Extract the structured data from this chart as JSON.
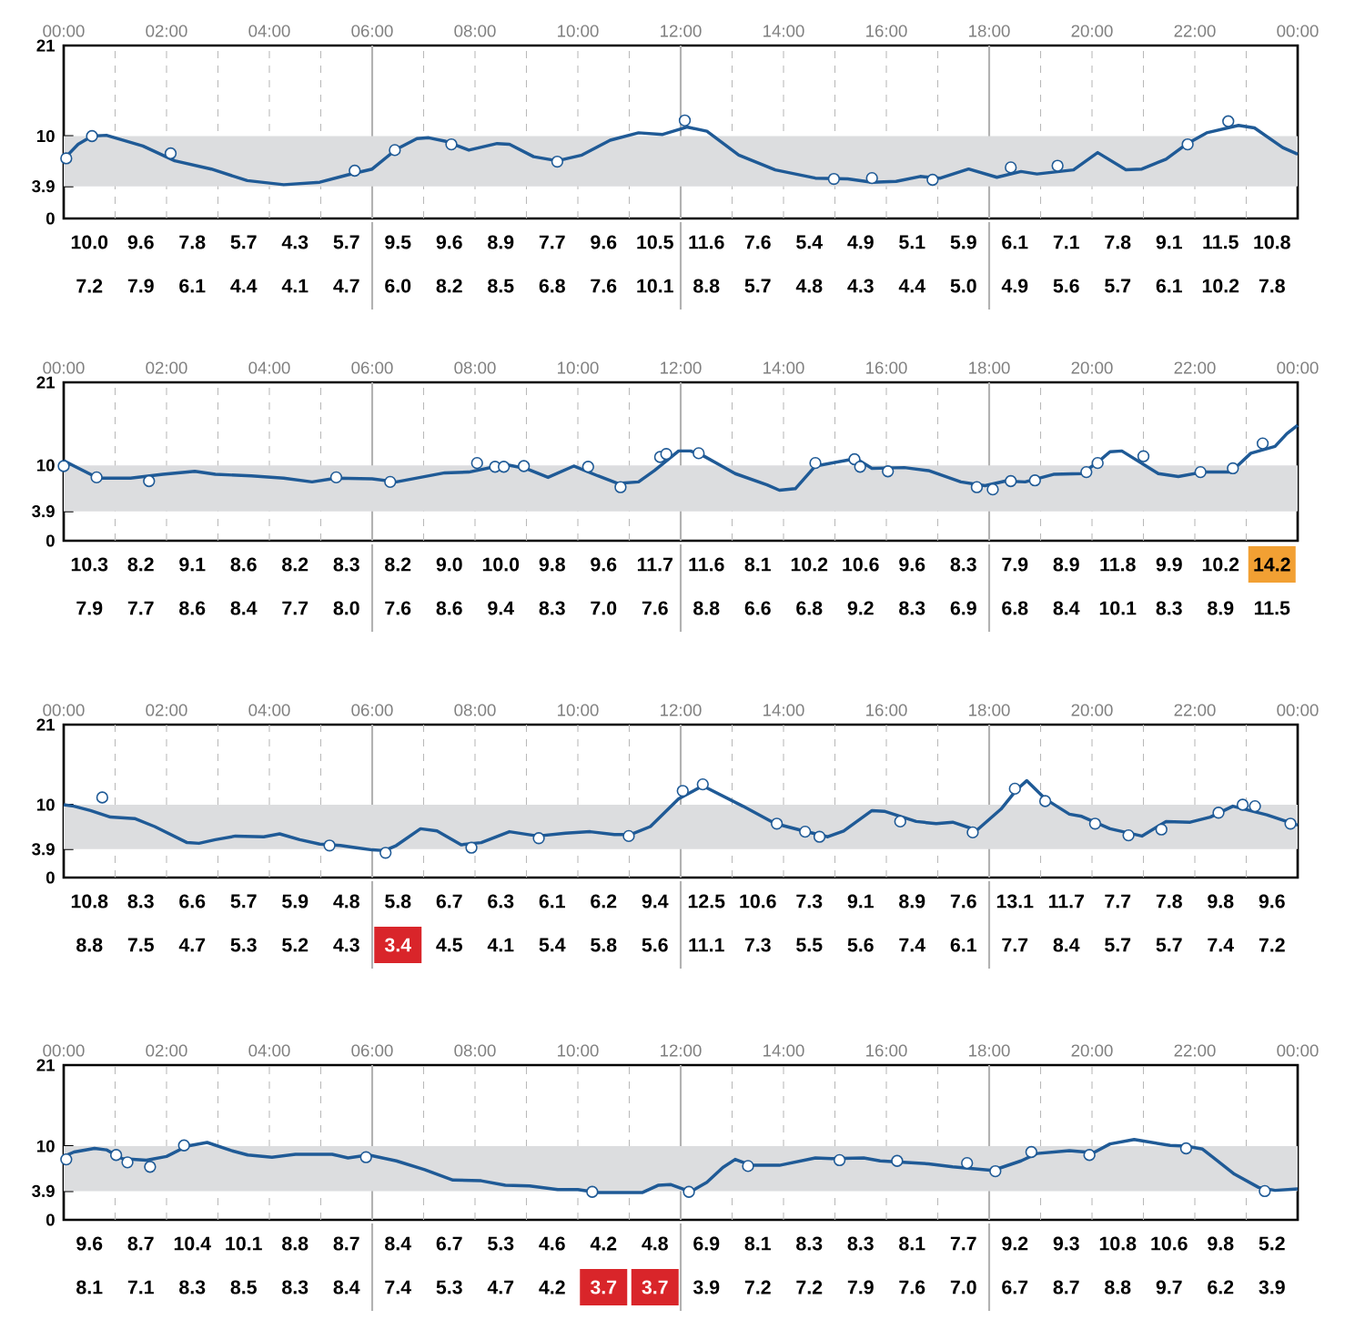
{
  "chart_data": [
    {
      "type": "line",
      "xlim": [
        0,
        24
      ],
      "ylim": [
        0,
        21
      ],
      "yticks": [
        0,
        3.9,
        10,
        21
      ],
      "grid": "x",
      "xticks": [
        {
          "value": 0,
          "label": "00:00"
        },
        {
          "value": 1,
          "label": null
        },
        {
          "value": 2,
          "label": "02:00"
        },
        {
          "value": 3,
          "label": null
        },
        {
          "value": 4,
          "label": "04:00"
        },
        {
          "value": 5,
          "label": null
        },
        {
          "value": 6,
          "label": "06:00"
        },
        {
          "value": 7,
          "label": null
        },
        {
          "value": 8,
          "label": "08:00"
        },
        {
          "value": 9,
          "label": null
        },
        {
          "value": 10,
          "label": "10:00"
        },
        {
          "value": 11,
          "label": null
        },
        {
          "value": 12,
          "label": "12:00"
        },
        {
          "value": 13,
          "label": null
        },
        {
          "value": 14,
          "label": "14:00"
        },
        {
          "value": 15,
          "label": null
        },
        {
          "value": 16,
          "label": "16:00"
        },
        {
          "value": 17,
          "label": null
        },
        {
          "value": 18,
          "label": "18:00"
        },
        {
          "value": 19,
          "label": null
        },
        {
          "value": 20,
          "label": "20:00"
        },
        {
          "value": 21,
          "label": null
        },
        {
          "value": 22,
          "label": "22:00"
        },
        {
          "value": 23,
          "label": null
        },
        {
          "value": 24,
          "label": "00:00"
        }
      ],
      "bands": [
        {
          "axis": "y",
          "from": 3.9,
          "to": 10,
          "color": "#dcdddf"
        }
      ],
      "series": [
        {
          "marker": "none",
          "color": "#1f5a96",
          "x": [
            0,
            0.28,
            0.55,
            0.83,
            1.54,
            2.16,
            2.87,
            3.57,
            4.28,
            4.98,
            5.53,
            6.0,
            6.47,
            6.87,
            7.1,
            7.41,
            7.88,
            8.43,
            8.67,
            9.14,
            9.6,
            10.08,
            10.63,
            11.18,
            11.65,
            12.12,
            12.51,
            13.13,
            13.84,
            14.62,
            15.25,
            15.72,
            16.19,
            16.66,
            17.05,
            17.6,
            18.15,
            18.62,
            18.93,
            19.64,
            20.11,
            20.66,
            20.97,
            21.44,
            21.83,
            22.23,
            22.85,
            23.16,
            23.71,
            24.0
          ],
          "values": [
            7.2,
            9.0,
            10.0,
            10.1,
            8.8,
            7.0,
            6.0,
            4.6,
            4.1,
            4.4,
            5.3,
            6.0,
            8.4,
            9.7,
            9.8,
            9.4,
            8.3,
            9.1,
            9.0,
            7.5,
            7.0,
            7.7,
            9.5,
            10.4,
            10.2,
            11.1,
            10.6,
            7.7,
            5.9,
            4.9,
            4.8,
            4.4,
            4.5,
            5.1,
            4.9,
            6.0,
            5.0,
            5.7,
            5.4,
            5.9,
            8.0,
            5.9,
            6.0,
            7.2,
            9.0,
            10.4,
            11.3,
            11.0,
            8.6,
            7.8
          ]
        },
        {
          "type": "scatter",
          "marker": "circle",
          "color": "#1f5a96",
          "x": [
            0.05,
            0.55,
            2.08,
            5.66,
            6.44,
            7.54,
            9.6,
            12.08,
            14.98,
            15.72,
            16.9,
            18.42,
            19.33,
            21.86,
            22.65
          ],
          "values": [
            7.3,
            10.0,
            7.9,
            5.8,
            8.3,
            9.0,
            6.9,
            11.9,
            4.8,
            4.9,
            4.7,
            6.2,
            6.4,
            9.0,
            11.8
          ]
        }
      ],
      "annotations": [
        "10.0",
        "9.6",
        "7.8",
        "5.7",
        "4.3",
        "5.7",
        "9.5",
        "9.6",
        "8.9",
        "7.7",
        "9.6",
        "10.5",
        "11.6",
        "7.6",
        "5.4",
        "4.9",
        "5.1",
        "5.9",
        "6.1",
        "7.1",
        "7.8",
        "9.1",
        "11.5",
        "10.8",
        "7.2",
        "7.9",
        "6.1",
        "4.4",
        "4.1",
        "4.7",
        "6.0",
        "8.2",
        "8.5",
        "6.8",
        "7.6",
        "10.1",
        "8.8",
        "5.7",
        "4.8",
        "4.3",
        "4.4",
        "5.0",
        "4.9",
        "5.6",
        "5.7",
        "6.1",
        "10.2",
        "7.8"
      ]
    },
    {
      "type": "line",
      "xlim": [
        0,
        24
      ],
      "ylim": [
        0,
        21
      ],
      "yticks": [
        0,
        3.9,
        10,
        21
      ],
      "grid": "x",
      "xticks": [
        {
          "value": 0,
          "label": "00:00"
        },
        {
          "value": 1,
          "label": null
        },
        {
          "value": 2,
          "label": "02:00"
        },
        {
          "value": 3,
          "label": null
        },
        {
          "value": 4,
          "label": "04:00"
        },
        {
          "value": 5,
          "label": null
        },
        {
          "value": 6,
          "label": "06:00"
        },
        {
          "value": 7,
          "label": null
        },
        {
          "value": 8,
          "label": "08:00"
        },
        {
          "value": 9,
          "label": null
        },
        {
          "value": 10,
          "label": "10:00"
        },
        {
          "value": 11,
          "label": null
        },
        {
          "value": 12,
          "label": "12:00"
        },
        {
          "value": 13,
          "label": null
        },
        {
          "value": 14,
          "label": "14:00"
        },
        {
          "value": 15,
          "label": null
        },
        {
          "value": 16,
          "label": "16:00"
        },
        {
          "value": 17,
          "label": null
        },
        {
          "value": 18,
          "label": "18:00"
        },
        {
          "value": 19,
          "label": null
        },
        {
          "value": 20,
          "label": "20:00"
        },
        {
          "value": 21,
          "label": null
        },
        {
          "value": 22,
          "label": "22:00"
        },
        {
          "value": 23,
          "label": null
        },
        {
          "value": 24,
          "label": "00:00"
        }
      ],
      "bands": [
        {
          "axis": "y",
          "from": 3.9,
          "to": 10,
          "color": "#dcdddf"
        }
      ],
      "series": [
        {
          "marker": "none",
          "color": "#1f5a96",
          "x": [
            0,
            0.67,
            1.3,
            1.93,
            2.55,
            2.95,
            3.65,
            4.28,
            4.83,
            5.3,
            6.0,
            6.47,
            7.41,
            7.88,
            8.59,
            8.98,
            9.42,
            9.92,
            10.39,
            10.78,
            11.18,
            11.49,
            11.96,
            12.19,
            12.43,
            13.06,
            13.68,
            13.92,
            14.23,
            14.62,
            15.41,
            15.72,
            16.35,
            16.82,
            17.45,
            17.92,
            18.31,
            18.7,
            19.25,
            19.8,
            20.11,
            20.35,
            20.58,
            21.29,
            21.68,
            22.15,
            22.7,
            23.09,
            23.56,
            23.79,
            24.0
          ],
          "values": [
            10.6,
            8.3,
            8.3,
            8.8,
            9.2,
            8.8,
            8.6,
            8.3,
            7.8,
            8.3,
            8.2,
            7.8,
            9.0,
            9.1,
            10.1,
            9.6,
            8.4,
            9.9,
            8.6,
            7.6,
            7.8,
            9.3,
            11.9,
            11.9,
            11.3,
            8.9,
            7.4,
            6.7,
            6.9,
            9.9,
            10.9,
            9.6,
            9.7,
            9.3,
            7.8,
            7.3,
            7.9,
            7.8,
            8.8,
            8.9,
            10.4,
            11.8,
            11.9,
            8.9,
            8.5,
            9.1,
            9.1,
            11.6,
            12.5,
            14.2,
            15.3
          ]
        },
        {
          "type": "scatter",
          "marker": "circle",
          "color": "#1f5a96",
          "x": [
            0,
            0.64,
            1.66,
            5.3,
            6.35,
            8.04,
            8.39,
            8.56,
            8.95,
            10.2,
            10.83,
            11.6,
            11.72,
            12.35,
            14.62,
            15.38,
            15.49,
            16.03,
            17.76,
            18.07,
            18.42,
            18.89,
            19.89,
            20.11,
            21.0,
            22.11,
            22.74,
            23.32
          ],
          "values": [
            9.9,
            8.4,
            7.9,
            8.4,
            7.8,
            10.3,
            9.8,
            9.8,
            9.9,
            9.8,
            7.1,
            11.1,
            11.5,
            11.6,
            10.3,
            10.8,
            9.8,
            9.2,
            7.1,
            6.8,
            7.9,
            8.0,
            9.1,
            10.3,
            11.2,
            9.1,
            9.6,
            12.9
          ]
        }
      ],
      "annotations": [
        "10.3",
        "8.2",
        "9.1",
        "8.6",
        "8.2",
        "8.3",
        "8.2",
        "9.0",
        "10.0",
        "9.8",
        "9.6",
        "11.7",
        "11.6",
        "8.1",
        "10.2",
        "10.6",
        "9.6",
        "8.3",
        "7.9",
        "8.9",
        "11.8",
        "9.9",
        "10.2",
        "14.2",
        "7.9",
        "7.7",
        "8.6",
        "8.4",
        "7.7",
        "8.0",
        "7.6",
        "8.6",
        "9.4",
        "8.3",
        "7.0",
        "7.6",
        "8.8",
        "6.6",
        "6.8",
        "9.2",
        "8.3",
        "6.9",
        "6.8",
        "8.4",
        "10.1",
        "8.3",
        "8.9",
        "11.5"
      ]
    },
    {
      "type": "line",
      "xlim": [
        0,
        24
      ],
      "ylim": [
        0,
        21
      ],
      "yticks": [
        0,
        3.9,
        10,
        21
      ],
      "grid": "x",
      "xticks": [
        {
          "value": 0,
          "label": "00:00"
        },
        {
          "value": 1,
          "label": null
        },
        {
          "value": 2,
          "label": "02:00"
        },
        {
          "value": 3,
          "label": null
        },
        {
          "value": 4,
          "label": "04:00"
        },
        {
          "value": 5,
          "label": null
        },
        {
          "value": 6,
          "label": "06:00"
        },
        {
          "value": 7,
          "label": null
        },
        {
          "value": 8,
          "label": "08:00"
        },
        {
          "value": 9,
          "label": null
        },
        {
          "value": 10,
          "label": "10:00"
        },
        {
          "value": 11,
          "label": null
        },
        {
          "value": 12,
          "label": "12:00"
        },
        {
          "value": 13,
          "label": null
        },
        {
          "value": 14,
          "label": "14:00"
        },
        {
          "value": 15,
          "label": null
        },
        {
          "value": 16,
          "label": "16:00"
        },
        {
          "value": 17,
          "label": null
        },
        {
          "value": 18,
          "label": "18:00"
        },
        {
          "value": 19,
          "label": null
        },
        {
          "value": 20,
          "label": "20:00"
        },
        {
          "value": 21,
          "label": null
        },
        {
          "value": 22,
          "label": "22:00"
        },
        {
          "value": 23,
          "label": null
        },
        {
          "value": 24,
          "label": "00:00"
        }
      ],
      "bands": [
        {
          "axis": "y",
          "from": 3.9,
          "to": 10,
          "color": "#dcdddf"
        }
      ],
      "series": [
        {
          "marker": "none",
          "color": "#1f5a96",
          "x": [
            0,
            0.2,
            0.52,
            0.91,
            1.38,
            1.77,
            2.4,
            2.63,
            2.95,
            3.34,
            3.89,
            4.2,
            4.59,
            4.98,
            5.38,
            5.69,
            6.0,
            6.24,
            6.47,
            6.94,
            7.26,
            7.73,
            8.12,
            8.67,
            9.22,
            9.76,
            10.24,
            10.71,
            11.02,
            11.41,
            11.96,
            12.43,
            13.21,
            13.84,
            14.39,
            14.86,
            15.17,
            15.72,
            15.96,
            16.58,
            16.97,
            17.29,
            17.76,
            18.23,
            18.54,
            18.73,
            19.09,
            19.56,
            19.8,
            20.35,
            20.97,
            21.44,
            21.91,
            22.3,
            22.74,
            23.4,
            24.0
          ],
          "values": [
            10.0,
            9.8,
            9.2,
            8.3,
            8.1,
            7.0,
            4.8,
            4.7,
            5.2,
            5.7,
            5.6,
            6.0,
            5.2,
            4.6,
            4.4,
            4.1,
            3.8,
            3.7,
            4.4,
            6.7,
            6.4,
            4.5,
            4.8,
            6.3,
            5.7,
            6.1,
            6.3,
            5.9,
            5.9,
            7.0,
            10.8,
            12.6,
            9.8,
            7.4,
            6.4,
            5.6,
            6.4,
            9.2,
            9.1,
            7.7,
            7.4,
            7.6,
            6.5,
            9.4,
            12.1,
            13.3,
            10.8,
            8.7,
            8.4,
            6.7,
            5.7,
            7.7,
            7.6,
            8.3,
            9.8,
            8.6,
            7.2
          ]
        },
        {
          "type": "scatter",
          "marker": "circle",
          "color": "#1f5a96",
          "x": [
            0.75,
            5.17,
            6.26,
            7.93,
            9.24,
            10.99,
            12.04,
            12.43,
            13.87,
            14.42,
            14.7,
            16.27,
            17.68,
            18.5,
            19.09,
            20.06,
            20.71,
            21.35,
            22.46,
            22.93,
            23.17,
            23.86
          ],
          "values": [
            11.0,
            4.4,
            3.4,
            4.1,
            5.4,
            5.7,
            11.9,
            12.8,
            7.4,
            6.3,
            5.6,
            7.7,
            6.2,
            12.2,
            10.5,
            7.4,
            5.8,
            6.6,
            8.9,
            10.0,
            9.8,
            7.4
          ]
        }
      ],
      "annotations": [
        "10.8",
        "8.3",
        "6.6",
        "5.7",
        "5.9",
        "4.8",
        "5.8",
        "6.7",
        "6.3",
        "6.1",
        "6.2",
        "9.4",
        "12.5",
        "10.6",
        "7.3",
        "9.1",
        "8.9",
        "7.6",
        "13.1",
        "11.7",
        "7.7",
        "7.8",
        "9.8",
        "9.6",
        "8.8",
        "7.5",
        "4.7",
        "5.3",
        "5.2",
        "4.3",
        "3.4",
        "4.5",
        "4.1",
        "5.4",
        "5.8",
        "5.6",
        "11.1",
        "7.3",
        "5.5",
        "5.6",
        "7.4",
        "6.1",
        "7.7",
        "8.4",
        "5.7",
        "5.7",
        "7.4",
        "7.2"
      ]
    },
    {
      "type": "line",
      "xlim": [
        0,
        24
      ],
      "ylim": [
        0,
        21
      ],
      "yticks": [
        0,
        3.9,
        10,
        21
      ],
      "grid": "x",
      "xticks": [
        {
          "value": 0,
          "label": "00:00"
        },
        {
          "value": 1,
          "label": null
        },
        {
          "value": 2,
          "label": "02:00"
        },
        {
          "value": 3,
          "label": null
        },
        {
          "value": 4,
          "label": "04:00"
        },
        {
          "value": 5,
          "label": null
        },
        {
          "value": 6,
          "label": "06:00"
        },
        {
          "value": 7,
          "label": null
        },
        {
          "value": 8,
          "label": "08:00"
        },
        {
          "value": 9,
          "label": null
        },
        {
          "value": 10,
          "label": "10:00"
        },
        {
          "value": 11,
          "label": null
        },
        {
          "value": 12,
          "label": "12:00"
        },
        {
          "value": 13,
          "label": null
        },
        {
          "value": 14,
          "label": "14:00"
        },
        {
          "value": 15,
          "label": null
        },
        {
          "value": 16,
          "label": "16:00"
        },
        {
          "value": 17,
          "label": null
        },
        {
          "value": 18,
          "label": "18:00"
        },
        {
          "value": 19,
          "label": null
        },
        {
          "value": 20,
          "label": "20:00"
        },
        {
          "value": 21,
          "label": null
        },
        {
          "value": 22,
          "label": "22:00"
        },
        {
          "value": 23,
          "label": null
        },
        {
          "value": 24,
          "label": "00:00"
        }
      ],
      "bands": [
        {
          "axis": "y",
          "from": 3.9,
          "to": 10,
          "color": "#dcdddf"
        }
      ],
      "series": [
        {
          "marker": "none",
          "color": "#1f5a96",
          "x": [
            0,
            0.2,
            0.6,
            0.83,
            1.14,
            1.61,
            2.0,
            2.4,
            2.79,
            3.26,
            3.58,
            4.05,
            4.51,
            5.22,
            5.53,
            5.93,
            6.47,
            7.02,
            7.57,
            8.12,
            8.59,
            9.06,
            9.61,
            10.0,
            10.39,
            11.25,
            11.57,
            11.8,
            12.19,
            12.51,
            12.82,
            13.06,
            13.37,
            13.92,
            14.62,
            14.94,
            15.56,
            15.88,
            16.82,
            17.29,
            18.07,
            18.62,
            18.93,
            19.56,
            20.03,
            20.35,
            20.82,
            21.52,
            21.83,
            22.15,
            22.77,
            23.24,
            23.56,
            24.0
          ],
          "values": [
            8.6,
            9.2,
            9.7,
            9.5,
            8.3,
            8.1,
            8.6,
            10.0,
            10.5,
            9.4,
            8.8,
            8.5,
            8.9,
            8.9,
            8.4,
            8.8,
            8.0,
            6.8,
            5.4,
            5.3,
            4.7,
            4.6,
            4.1,
            4.1,
            3.7,
            3.7,
            4.7,
            4.8,
            3.8,
            5.1,
            7.1,
            8.2,
            7.4,
            7.4,
            8.4,
            8.3,
            8.4,
            8.0,
            7.6,
            7.2,
            6.7,
            8.0,
            9.0,
            9.4,
            9.1,
            10.3,
            10.9,
            10.1,
            10.0,
            9.6,
            6.2,
            4.4,
            4.0,
            4.2
          ]
        },
        {
          "type": "scatter",
          "marker": "circle",
          "color": "#1f5a96",
          "x": [
            0.05,
            1.02,
            1.24,
            1.68,
            2.34,
            5.88,
            10.28,
            12.16,
            13.31,
            15.09,
            16.21,
            17.57,
            18.12,
            18.82,
            19.95,
            21.83,
            23.36
          ],
          "values": [
            8.2,
            8.8,
            7.8,
            7.2,
            10.1,
            8.5,
            3.8,
            3.8,
            7.3,
            8.1,
            8.0,
            7.7,
            6.6,
            9.2,
            8.8,
            9.7,
            3.9
          ]
        }
      ],
      "annotations": [
        "9.6",
        "8.7",
        "10.4",
        "10.1",
        "8.8",
        "8.7",
        "8.4",
        "6.7",
        "5.3",
        "4.6",
        "4.2",
        "4.8",
        "6.9",
        "8.1",
        "8.3",
        "8.3",
        "8.1",
        "7.7",
        "9.2",
        "9.3",
        "10.8",
        "10.6",
        "9.8",
        "5.2",
        "8.1",
        "7.1",
        "8.3",
        "8.5",
        "8.3",
        "8.4",
        "7.4",
        "5.3",
        "4.7",
        "4.2",
        "3.7",
        "3.7",
        "3.9",
        "7.2",
        "7.2",
        "7.9",
        "7.6",
        "7.0",
        "6.7",
        "8.7",
        "8.8",
        "9.7",
        "6.2",
        "3.9"
      ]
    }
  ]
}
